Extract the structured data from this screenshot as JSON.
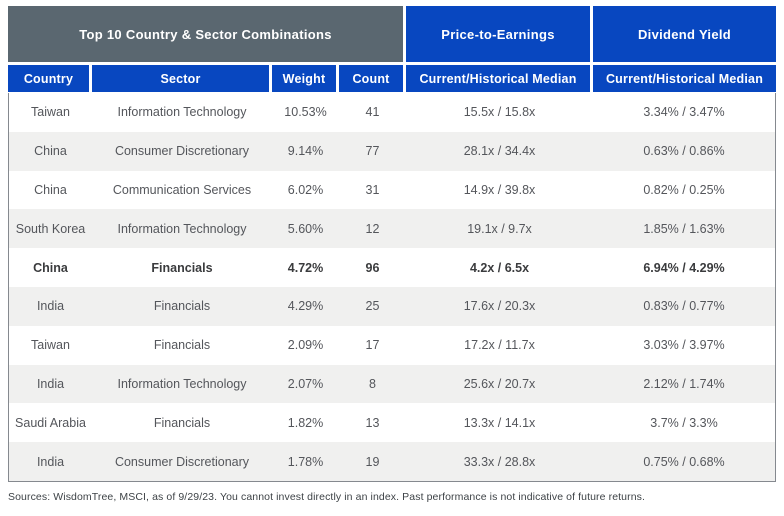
{
  "chart_data": {
    "type": "table",
    "title": "Top 10 Country & Sector Combinations",
    "group_headers": [
      "Top 10 Country & Sector Combinations",
      "Price-to-Earnings",
      "Dividend Yield"
    ],
    "columns": [
      "Country",
      "Sector",
      "Weight",
      "Count",
      "Current/Historical Median",
      "Current/Historical Median"
    ],
    "rows": [
      {
        "country": "Taiwan",
        "sector": "Information Technology",
        "weight": "10.53%",
        "count": "41",
        "pe": "15.5x / 15.8x",
        "dy": "3.34% / 3.47%"
      },
      {
        "country": "China",
        "sector": "Consumer Discretionary",
        "weight": "9.14%",
        "count": "77",
        "pe": "28.1x / 34.4x",
        "dy": "0.63% / 0.86%"
      },
      {
        "country": "China",
        "sector": "Communication Services",
        "weight": "6.02%",
        "count": "31",
        "pe": "14.9x / 39.8x",
        "dy": "0.82% / 0.25%"
      },
      {
        "country": "South Korea",
        "sector": "Information Technology",
        "weight": "5.60%",
        "count": "12",
        "pe": "19.1x / 9.7x",
        "dy": "1.85% / 1.63%"
      },
      {
        "country": "China",
        "sector": "Financials",
        "weight": "4.72%",
        "count": "96",
        "pe": "4.2x / 6.5x",
        "dy": "6.94% / 4.29%"
      },
      {
        "country": "India",
        "sector": "Financials",
        "weight": "4.29%",
        "count": "25",
        "pe": "17.6x / 20.3x",
        "dy": "0.83% / 0.77%"
      },
      {
        "country": "Taiwan",
        "sector": "Financials",
        "weight": "2.09%",
        "count": "17",
        "pe": "17.2x / 11.7x",
        "dy": "3.03% / 3.97%"
      },
      {
        "country": "India",
        "sector": "Information Technology",
        "weight": "2.07%",
        "count": "8",
        "pe": "25.6x / 20.7x",
        "dy": "2.12% / 1.74%"
      },
      {
        "country": "Saudi Arabia",
        "sector": "Financials",
        "weight": "1.82%",
        "count": "13",
        "pe": "13.3x / 14.1x",
        "dy": "3.7% / 3.3%"
      },
      {
        "country": "India",
        "sector": "Consumer Discretionary",
        "weight": "1.78%",
        "count": "19",
        "pe": "33.3x / 28.8x",
        "dy": "0.75% / 0.68%"
      }
    ],
    "emphasis_row_index": 4,
    "footnote": "Sources: WisdomTree, MSCI, as of 9/29/23. You cannot invest directly in an index. Past performance is not indicative of future returns.",
    "layout": {
      "stripe_pattern": "even rows shaded",
      "alignment": "center"
    }
  },
  "colors": {
    "header_blue": "#0847C0",
    "header_gray": "#5A6770",
    "row_alt": "#F0F0EF",
    "body_border": "#85898F",
    "body_text": "#54565B"
  }
}
